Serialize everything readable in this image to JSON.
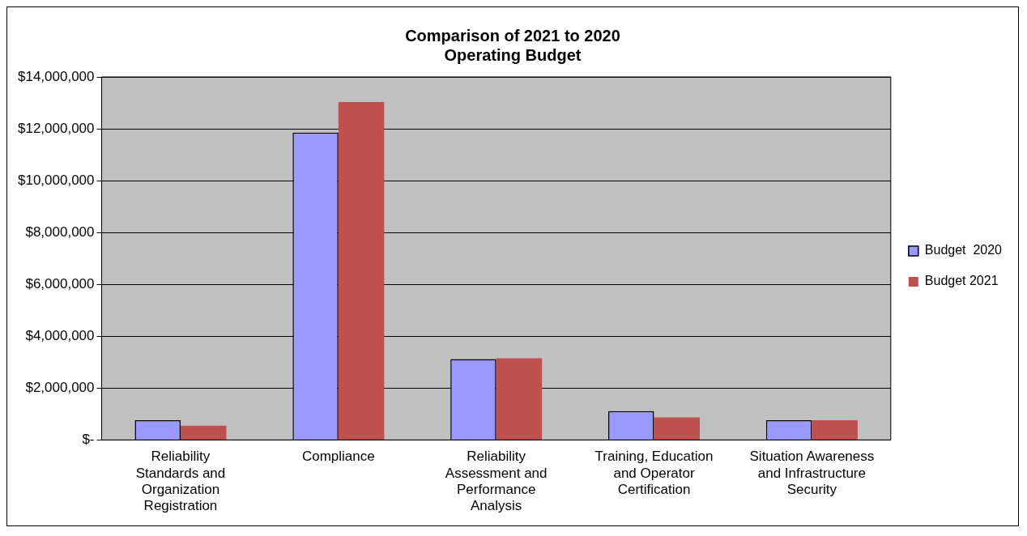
{
  "chart_data": {
    "type": "bar",
    "title": "Comparison of 2021 to 2020\nOperating Budget",
    "categories": [
      "Reliability Standards and Organization Registration",
      "Compliance",
      "Reliability Assessment and Performance Analysis",
      "Training, Education and Operator Certification",
      "Situation Awareness and Infrastructure Security"
    ],
    "series": [
      {
        "name": "Budget  2020",
        "color": "#9999ff",
        "values": [
          760000,
          11850000,
          3120000,
          1110000,
          760000
        ]
      },
      {
        "name": "Budget 2021",
        "color": "#c0504d",
        "values": [
          550000,
          13030000,
          3150000,
          870000,
          760000
        ]
      }
    ],
    "ylim": [
      0,
      14000000
    ],
    "yticks": [
      {
        "value": 0,
        "label": "$-"
      },
      {
        "value": 2000000,
        "label": "$2,000,000"
      },
      {
        "value": 4000000,
        "label": "$4,000,000"
      },
      {
        "value": 6000000,
        "label": "$6,000,000"
      },
      {
        "value": 8000000,
        "label": "$8,000,000"
      },
      {
        "value": 10000000,
        "label": "$10,000,000"
      },
      {
        "value": 12000000,
        "label": "$12,000,000"
      },
      {
        "value": 14000000,
        "label": "$14,000,000"
      }
    ],
    "grid": "y",
    "legend": "right"
  }
}
